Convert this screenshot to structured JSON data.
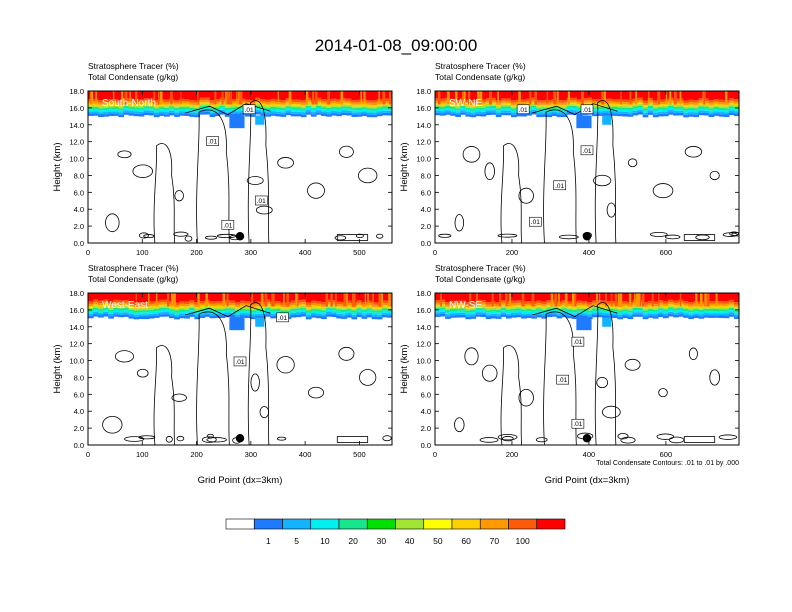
{
  "title": "2014-01-08_09:00:00",
  "panel_header": {
    "line1": "Stratosphere Tracer   (%)",
    "line2": "Total Condensate   (g/kg)"
  },
  "ylabel": "Height (km)",
  "xlabel": "Grid Point (dx=3km)",
  "contour_note": "Total Condensate Contours: .01 to .01 by .000",
  "colors": {
    "bins": [
      "#ffffff",
      "#1e7bff",
      "#12b4ff",
      "#00f0f0",
      "#19e58c",
      "#00e000",
      "#a0e632",
      "#ffff00",
      "#ffd000",
      "#ff9900",
      "#ff5a0a",
      "#ff0000"
    ]
  },
  "colorbar": {
    "labels": [
      "1",
      "5",
      "10",
      "20",
      "30",
      "40",
      "50",
      "60",
      "70",
      "100"
    ]
  },
  "chart_data": [
    {
      "type": "heatmap",
      "panel_label": "South-North",
      "xlim": [
        0,
        560
      ],
      "xticks": [
        0,
        100,
        200,
        300,
        400,
        500
      ],
      "ylim": [
        0,
        18
      ],
      "yticks": [
        "0.0",
        "2.0",
        "4.0",
        "6.0",
        "8.0",
        "10.0",
        "12.0",
        "14.0",
        "16.0",
        "18.0"
      ],
      "contour_labels": [
        ".01",
        ".01",
        ".01",
        ".01"
      ],
      "marker_x": 280
    },
    {
      "type": "heatmap",
      "panel_label": "SW-NE",
      "xlim": [
        0,
        790
      ],
      "xticks": [
        0,
        200,
        400,
        600
      ],
      "ylim": [
        0,
        18
      ],
      "yticks": [
        "0.0",
        "2.0",
        "4.0",
        "6.0",
        "8.0",
        "10.0",
        "12.0",
        "14.0",
        "16.0",
        "18.0"
      ],
      "contour_labels": [
        ".01",
        ".01",
        ".01",
        ".01",
        ".01"
      ],
      "marker_x": 395
    },
    {
      "type": "heatmap",
      "panel_label": "West-East",
      "xlim": [
        0,
        560
      ],
      "xticks": [
        0,
        100,
        200,
        300,
        400,
        500
      ],
      "ylim": [
        0,
        18
      ],
      "yticks": [
        "0.0",
        "2.0",
        "4.0",
        "6.0",
        "8.0",
        "10.0",
        "12.0",
        "14.0",
        "16.0",
        "18.0"
      ],
      "contour_labels": [
        ".01",
        ".01"
      ],
      "marker_x": 280
    },
    {
      "type": "heatmap",
      "panel_label": "NW-SE",
      "xlim": [
        0,
        790
      ],
      "xticks": [
        0,
        200,
        400,
        600
      ],
      "ylim": [
        0,
        18
      ],
      "yticks": [
        "0.0",
        "2.0",
        "4.0",
        "6.0",
        "8.0",
        "10.0",
        "12.0",
        "14.0",
        "16.0",
        "18.0"
      ],
      "contour_labels": [
        ".01",
        ".01",
        ".01"
      ],
      "marker_x": 395
    }
  ]
}
